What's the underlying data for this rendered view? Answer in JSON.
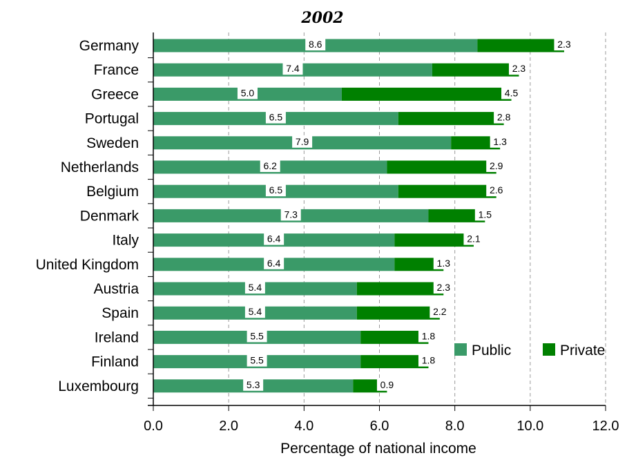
{
  "chart_data": {
    "type": "bar",
    "orientation": "horizontal",
    "stacked": true,
    "title": "2002",
    "xlabel": "Percentage of national income",
    "ylabel": "",
    "xlim": [
      0,
      12
    ],
    "x_ticks": [
      "0.0",
      "2.0",
      "4.0",
      "6.0",
      "8.0",
      "10.0",
      "12.0"
    ],
    "grid": "vertical dashed at 8.0, 10.0, 12.0",
    "legend_position": "bottom-right",
    "categories": [
      "Germany",
      "France",
      "Greece",
      "Portugal",
      "Sweden",
      "Netherlands",
      "Belgium",
      "Denmark",
      "Italy",
      "United Kingdom",
      "Austria",
      "Spain",
      "Ireland",
      "Finland",
      "Luxembourg"
    ],
    "series": [
      {
        "name": "Public",
        "color": "#3a9a68",
        "values": [
          8.6,
          7.4,
          5.0,
          6.5,
          7.9,
          6.2,
          6.5,
          7.3,
          6.4,
          6.4,
          5.4,
          5.4,
          5.5,
          5.5,
          5.3
        ],
        "labels": [
          "8.6",
          "7.4",
          "5.0",
          "6.5",
          "7.9",
          "6.2",
          "6.5",
          "7.3",
          "6.4",
          "6.4",
          "5.4",
          "5.4",
          "5.5",
          "5.5",
          "5.3"
        ]
      },
      {
        "name": "Private",
        "color": "#008000",
        "values": [
          2.3,
          2.3,
          4.5,
          2.8,
          1.3,
          2.9,
          2.6,
          1.5,
          2.1,
          1.3,
          2.3,
          2.2,
          1.8,
          1.8,
          0.9
        ],
        "labels": [
          "2.3",
          "2.3",
          "4.5",
          "2.8",
          "1.3",
          "2.9",
          "2.6",
          "1.5",
          "2.1",
          "1.3",
          "2.3",
          "2.2",
          "1.8",
          "1.8",
          "0.9"
        ]
      }
    ]
  }
}
